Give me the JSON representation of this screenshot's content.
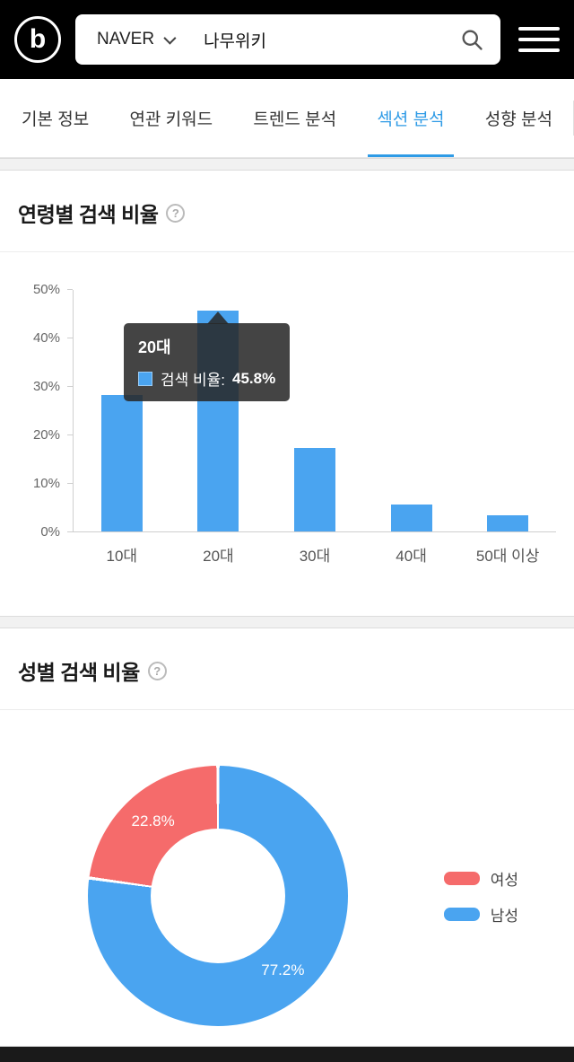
{
  "header": {
    "logo_text": "b",
    "search": {
      "provider": "NAVER",
      "query": "나무위키"
    }
  },
  "tabs": [
    {
      "label": "기본 정보"
    },
    {
      "label": "연관 키워드"
    },
    {
      "label": "트렌드 분석"
    },
    {
      "label": "섹션 분석"
    },
    {
      "label": "성향 분석"
    }
  ],
  "active_tab_index": 3,
  "colors": {
    "bar_blue": "#4aa4f0",
    "donut_blue": "#4aa4f0",
    "donut_red": "#f56b6b",
    "tab_active": "#2f9be6"
  },
  "age_section": {
    "title": "연령별 검색 비율",
    "help_icon": "?",
    "chart_data": {
      "type": "bar",
      "title": "연령별 검색 비율",
      "series_name": "검색 비율",
      "categories": [
        "10대",
        "20대",
        "30대",
        "40대",
        "50대 이상"
      ],
      "values": [
        28.2,
        45.8,
        17.2,
        5.6,
        3.3
      ],
      "xlabel": "",
      "ylabel": "",
      "ylim": [
        0,
        50
      ],
      "yticks": [
        "0%",
        "10%",
        "20%",
        "30%",
        "40%",
        "50%"
      ],
      "grid": false,
      "legend_position": "none"
    },
    "tooltip": {
      "category": "20대",
      "label": "검색 비율:",
      "value": "45.8%"
    }
  },
  "gender_section": {
    "title": "성별 검색 비율",
    "help_icon": "?",
    "chart_data": {
      "type": "pie",
      "donut": true,
      "title": "성별 검색 비율",
      "slices": [
        {
          "label": "여성",
          "value": 22.8,
          "display": "22.8%",
          "color": "#f56b6b"
        },
        {
          "label": "남성",
          "value": 77.2,
          "display": "77.2%",
          "color": "#4aa4f0"
        }
      ],
      "render_order": [
        1,
        0
      ],
      "start_angle_deg": 0,
      "legend_position": "right"
    }
  }
}
